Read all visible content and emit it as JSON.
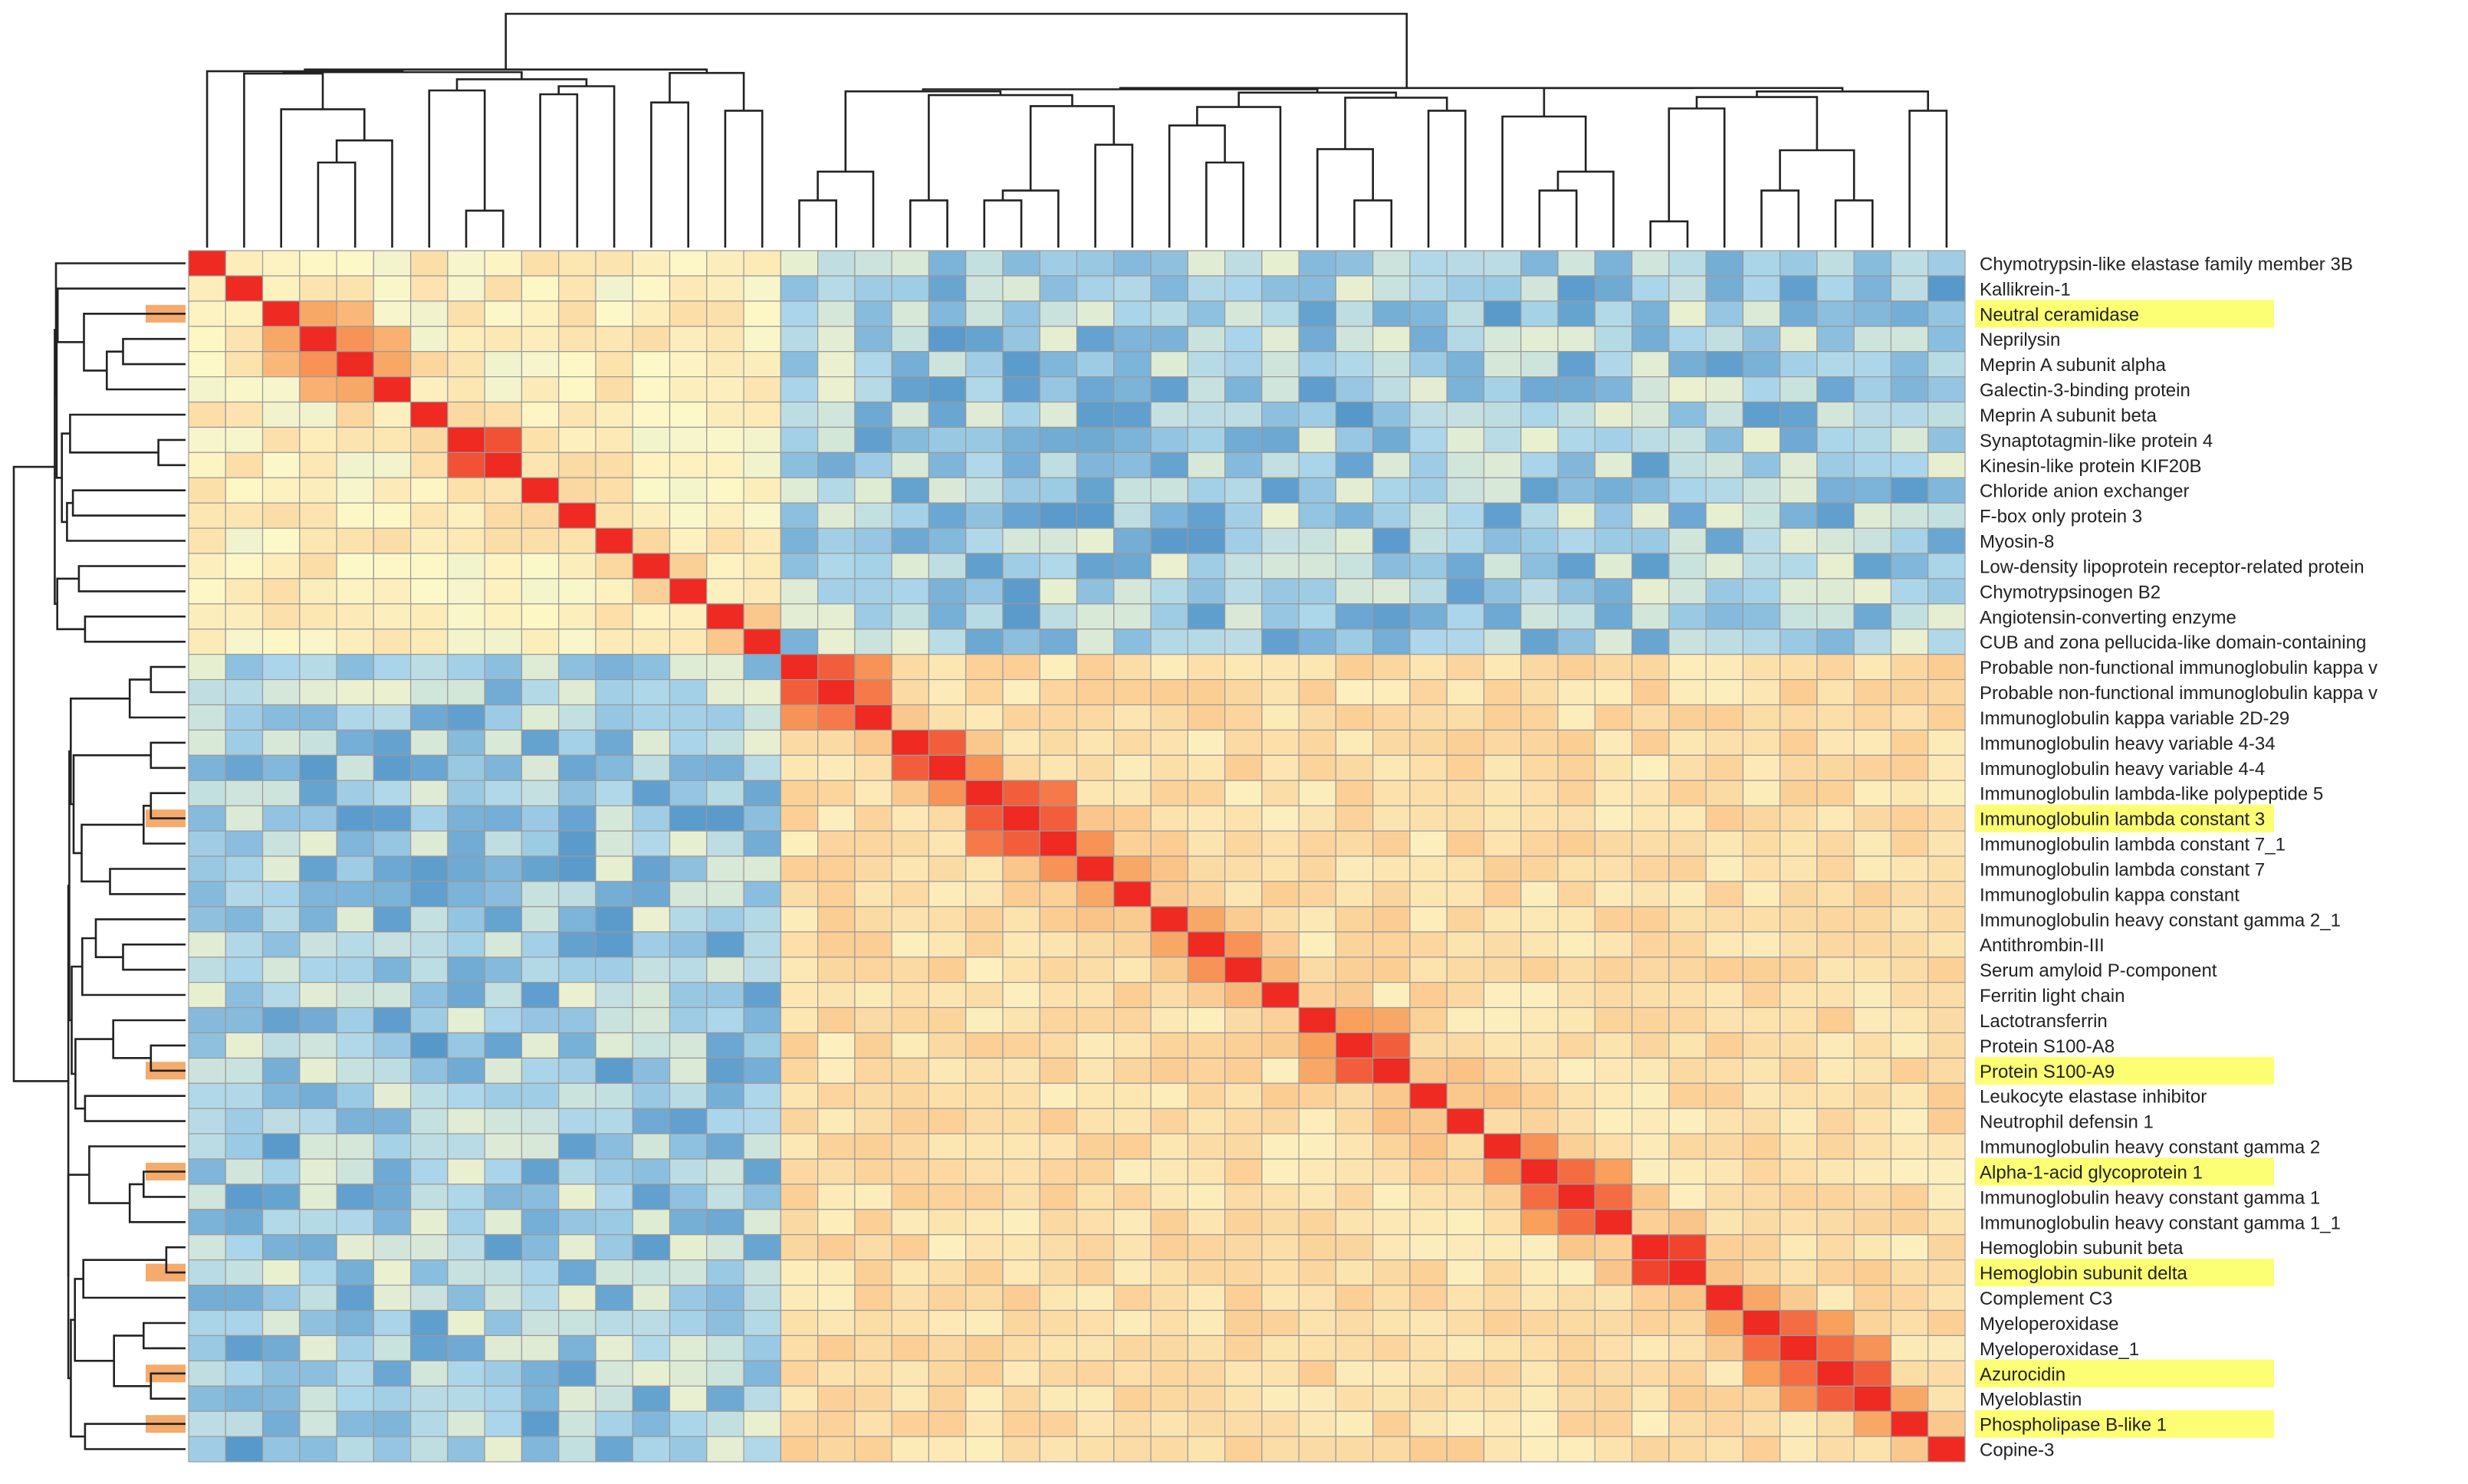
{
  "chart_data": {
    "type": "heatmap",
    "title": "",
    "xlabel": "",
    "ylabel": "",
    "color_scale": {
      "low": "#1c6eb5",
      "mid": "#fdf8c8",
      "high": "#ee2a22",
      "range": [
        -1,
        1
      ]
    },
    "highlight_color": "#fbff5a",
    "row_marker_color": "#f3a25b",
    "labels": [
      "Chymotrypsin-like elastase family member 3B",
      "Kallikrein-1",
      "Neutral ceramidase",
      "Neprilysin",
      "Meprin A subunit alpha",
      "Galectin-3-binding protein",
      "Meprin A subunit beta",
      "Synaptotagmin-like protein 4",
      "Kinesin-like protein KIF20B",
      "Chloride anion exchanger",
      "F-box only protein 3",
      "Myosin-8",
      "Low-density lipoprotein receptor-related protein",
      "Chymotrypsinogen B2",
      "Angiotensin-converting enzyme",
      "CUB and zona pellucida-like domain-containing",
      "Probable non-functional immunoglobulin kappa v",
      "Probable non-functional immunoglobulin kappa v",
      "Immunoglobulin kappa variable 2D-29",
      "Immunoglobulin heavy variable 4-34",
      "Immunoglobulin heavy variable 4-4",
      "Immunoglobulin lambda-like polypeptide 5",
      "Immunoglobulin lambda constant 3",
      "Immunoglobulin lambda constant 7_1",
      "Immunoglobulin lambda constant 7",
      "Immunoglobulin kappa constant",
      "Immunoglobulin heavy constant gamma 2_1",
      "Antithrombin-III",
      "Serum amyloid P-component",
      "Ferritin light chain",
      "Lactotransferrin",
      "Protein S100-A8",
      "Protein S100-A9",
      "Leukocyte elastase inhibitor",
      "Neutrophil defensin 1",
      "Immunoglobulin heavy constant gamma 2",
      "Alpha-1-acid glycoprotein 1",
      "Immunoglobulin heavy constant gamma 1",
      "Immunoglobulin heavy constant gamma 1_1",
      "Hemoglobin subunit beta",
      "Hemoglobin subunit delta",
      "Complement C3",
      "Myeloperoxidase",
      "Myeloperoxidase_1",
      "Azurocidin",
      "Myeloblastin",
      "Phospholipase B-like 1",
      "Copine-3"
    ],
    "highlighted_rows": [
      2,
      22,
      32,
      36,
      40,
      44,
      46
    ],
    "clusters": [
      {
        "name": "cluster-1",
        "start": 0,
        "end": 15
      },
      {
        "name": "cluster-2",
        "start": 16,
        "end": 47
      }
    ],
    "strong_pairs": [
      [
        7,
        8,
        0.85
      ],
      [
        3,
        4,
        0.6
      ],
      [
        4,
        5,
        0.5
      ],
      [
        2,
        3,
        0.5
      ],
      [
        3,
        5,
        0.45
      ],
      [
        2,
        4,
        0.4
      ],
      [
        16,
        17,
        0.8
      ],
      [
        17,
        18,
        0.7
      ],
      [
        16,
        18,
        0.6
      ],
      [
        19,
        20,
        0.8
      ],
      [
        20,
        21,
        0.6
      ],
      [
        21,
        22,
        0.8
      ],
      [
        22,
        23,
        0.8
      ],
      [
        21,
        23,
        0.7
      ],
      [
        23,
        24,
        0.6
      ],
      [
        24,
        25,
        0.5
      ],
      [
        26,
        27,
        0.5
      ],
      [
        27,
        28,
        0.6
      ],
      [
        28,
        29,
        0.4
      ],
      [
        30,
        31,
        0.55
      ],
      [
        31,
        32,
        0.8
      ],
      [
        30,
        32,
        0.5
      ],
      [
        33,
        34,
        0.3
      ],
      [
        35,
        36,
        0.6
      ],
      [
        36,
        37,
        0.75
      ],
      [
        37,
        38,
        0.75
      ],
      [
        36,
        38,
        0.55
      ],
      [
        39,
        40,
        0.9
      ],
      [
        41,
        42,
        0.5
      ],
      [
        42,
        43,
        0.75
      ],
      [
        43,
        44,
        0.75
      ],
      [
        44,
        45,
        0.8
      ],
      [
        42,
        44,
        0.55
      ],
      [
        43,
        45,
        0.6
      ],
      [
        45,
        46,
        0.5
      ],
      [
        46,
        47,
        0.3
      ]
    ],
    "weak_pairs": [
      [
        1,
        29,
        -0.4
      ],
      [
        3,
        8,
        0.1
      ],
      [
        9,
        10,
        0.2
      ],
      [
        12,
        13,
        0.25
      ],
      [
        14,
        15,
        0.3
      ]
    ]
  }
}
